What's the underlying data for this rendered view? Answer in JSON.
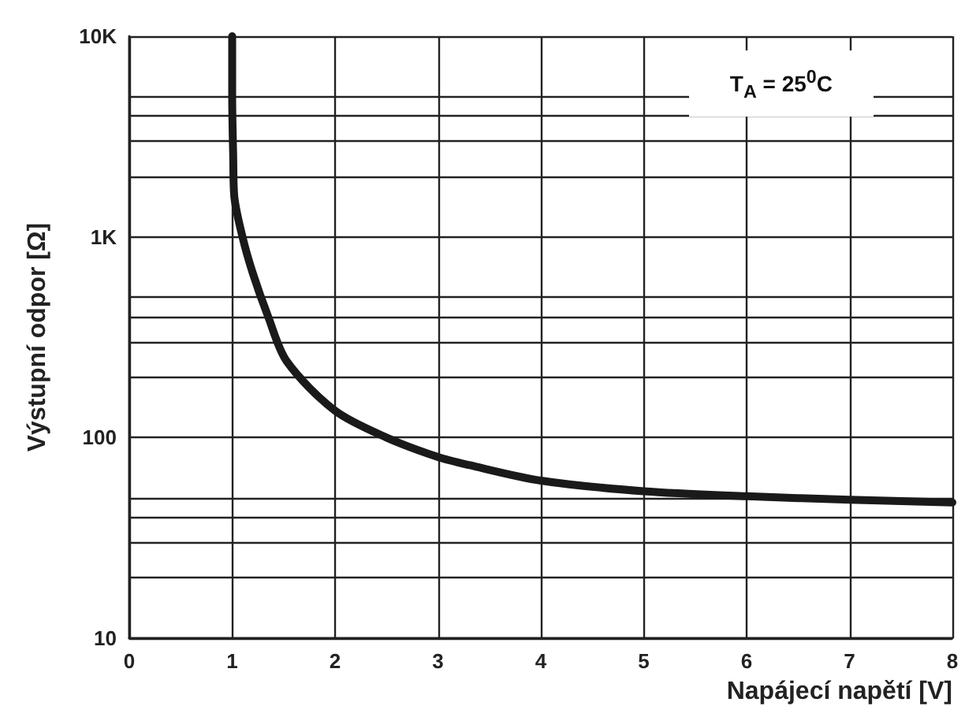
{
  "chart_data": {
    "type": "line",
    "xlabel": "Napájecí napětí [V]",
    "ylabel": "Výstupní odpor [Ω]",
    "annotations": [
      "T$_{A}$ = 25$^{0}$C"
    ],
    "series": [
      {
        "color": "#1a1a1a",
        "x": [
          1.0,
          1.0,
          1.01,
          1.02,
          1.1,
          1.2,
          1.35,
          1.53,
          2.0,
          2.5,
          3.0,
          3.3,
          4.0,
          5.0,
          6.0,
          7.0,
          8.0
        ],
        "values": [
          10000,
          5000,
          2500,
          1600,
          1000,
          660,
          400,
          240,
          136,
          100,
          80,
          73,
          61,
          54,
          51,
          49,
          47.5
        ]
      }
    ],
    "xlim": [
      0,
      8
    ],
    "xticks": [
      0,
      1,
      2,
      3,
      4,
      5,
      6,
      7,
      8
    ],
    "ylim": [
      10,
      10000
    ],
    "yticks": [
      10,
      {
        "value": 20,
        "label": null
      },
      {
        "value": 30,
        "label": null
      },
      {
        "value": 40,
        "label": null
      },
      {
        "value": 50,
        "label": null
      },
      100,
      {
        "value": 200,
        "label": null
      },
      {
        "value": 300,
        "label": null
      },
      {
        "value": 400,
        "label": null
      },
      {
        "value": 500,
        "label": null
      },
      {
        "value": 1000,
        "label": "1K"
      },
      {
        "value": 2000,
        "label": null
      },
      {
        "value": 3000,
        "label": null
      },
      {
        "value": 4000,
        "label": null
      },
      {
        "value": 5000,
        "label": null
      },
      {
        "value": 10000,
        "label": "10K"
      }
    ],
    "log": "y",
    "grid": true,
    "marker": "none",
    "line_style": "solid"
  }
}
